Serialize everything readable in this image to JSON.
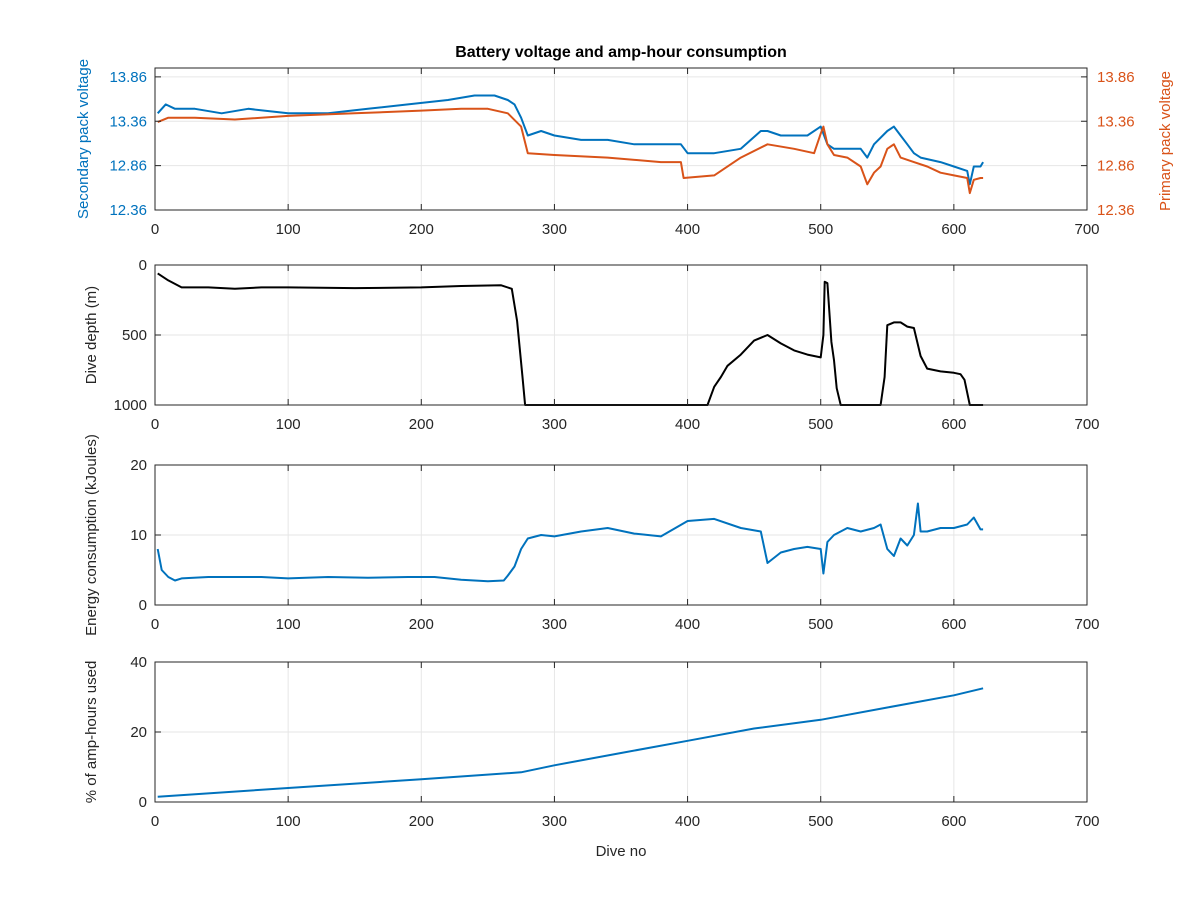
{
  "figure": {
    "title": "Battery voltage and amp-hour consumption",
    "xlabel": "Dive no"
  },
  "colors": {
    "blue": "#0072bd",
    "orange": "#d95319",
    "black": "#000000",
    "grid": "#e6e6e6",
    "axis": "#262626"
  },
  "chart_data": [
    {
      "type": "line",
      "title": "Battery voltage and amp-hour consumption",
      "xlabel": "",
      "ylabel": "Secondary pack voltage",
      "ylabel_right": "Primary pack voltage",
      "xlim": [
        0,
        700
      ],
      "ylim": [
        12.36,
        13.96
      ],
      "ylim_right": [
        12.36,
        13.96
      ],
      "xticks": [
        0,
        100,
        200,
        300,
        400,
        500,
        600,
        700
      ],
      "yticks": [
        12.36,
        12.86,
        13.36,
        13.86
      ],
      "yticks_right": [
        12.36,
        12.86,
        13.36,
        13.86
      ],
      "ytick_labels": [
        "12.36",
        "12.86",
        "13.36",
        "13.86"
      ],
      "grid": true,
      "series": [
        {
          "axis": "left",
          "color": "#0072bd",
          "x": [
            2,
            8,
            15,
            30,
            50,
            70,
            100,
            130,
            160,
            190,
            220,
            240,
            255,
            265,
            270,
            275,
            280,
            290,
            300,
            320,
            340,
            360,
            380,
            395,
            400,
            420,
            440,
            455,
            460,
            470,
            480,
            490,
            500,
            505,
            510,
            520,
            530,
            535,
            540,
            550,
            555,
            560,
            565,
            570,
            575,
            590,
            600,
            610,
            612,
            615,
            620,
            622
          ],
          "y": [
            13.45,
            13.55,
            13.5,
            13.5,
            13.45,
            13.5,
            13.45,
            13.45,
            13.5,
            13.55,
            13.6,
            13.65,
            13.65,
            13.6,
            13.55,
            13.4,
            13.2,
            13.25,
            13.2,
            13.15,
            13.15,
            13.1,
            13.1,
            13.1,
            13.0,
            13.0,
            13.05,
            13.25,
            13.25,
            13.2,
            13.2,
            13.2,
            13.3,
            13.1,
            13.05,
            13.05,
            13.05,
            12.95,
            13.1,
            13.25,
            13.3,
            13.2,
            13.1,
            13.0,
            12.95,
            12.9,
            12.85,
            12.8,
            12.65,
            12.85,
            12.85,
            12.9
          ]
        },
        {
          "axis": "right",
          "color": "#d95319",
          "x": [
            2,
            10,
            30,
            60,
            100,
            150,
            200,
            230,
            250,
            265,
            275,
            280,
            300,
            340,
            380,
            395,
            397,
            420,
            440,
            460,
            480,
            495,
            500,
            502,
            505,
            510,
            520,
            530,
            535,
            540,
            545,
            550,
            555,
            560,
            570,
            580,
            590,
            600,
            610,
            612,
            615,
            620,
            622
          ],
          "y": [
            13.35,
            13.4,
            13.4,
            13.38,
            13.42,
            13.45,
            13.48,
            13.5,
            13.5,
            13.45,
            13.3,
            13.0,
            12.98,
            12.95,
            12.9,
            12.9,
            12.72,
            12.75,
            12.95,
            13.1,
            13.05,
            13.0,
            13.22,
            13.3,
            13.1,
            12.98,
            12.95,
            12.85,
            12.65,
            12.78,
            12.85,
            13.05,
            13.1,
            12.95,
            12.9,
            12.85,
            12.78,
            12.75,
            12.72,
            12.55,
            12.7,
            12.72,
            12.72
          ]
        }
      ]
    },
    {
      "type": "line",
      "xlabel": "",
      "ylabel": "Dive depth (m)",
      "xlim": [
        0,
        700
      ],
      "ylim": [
        0,
        1000
      ],
      "yreverse": true,
      "xticks": [
        0,
        100,
        200,
        300,
        400,
        500,
        600,
        700
      ],
      "yticks": [
        0,
        500,
        1000
      ],
      "ytick_labels": [
        "0",
        "500",
        "1000"
      ],
      "grid": true,
      "series": [
        {
          "color": "#000000",
          "x": [
            2,
            10,
            20,
            40,
            60,
            80,
            100,
            150,
            200,
            230,
            260,
            268,
            272,
            276,
            278,
            280,
            300,
            350,
            400,
            415,
            420,
            425,
            430,
            440,
            450,
            460,
            470,
            480,
            490,
            500,
            502,
            503,
            505,
            508,
            510,
            512,
            515,
            545,
            548,
            550,
            555,
            560,
            565,
            570,
            575,
            580,
            590,
            600,
            605,
            608,
            612,
            622
          ],
          "y": [
            60,
            110,
            160,
            160,
            170,
            160,
            160,
            165,
            160,
            150,
            145,
            170,
            400,
            800,
            1000,
            1000,
            1000,
            1000,
            1000,
            1000,
            870,
            800,
            720,
            640,
            540,
            500,
            560,
            610,
            640,
            660,
            500,
            120,
            130,
            550,
            680,
            880,
            1000,
            1000,
            800,
            430,
            410,
            410,
            440,
            450,
            650,
            740,
            760,
            770,
            780,
            820,
            1000,
            1000
          ]
        }
      ]
    },
    {
      "type": "line",
      "xlabel": "",
      "ylabel": "Energy consumption (kJoules)",
      "xlim": [
        0,
        700
      ],
      "ylim": [
        0,
        20
      ],
      "xticks": [
        0,
        100,
        200,
        300,
        400,
        500,
        600,
        700
      ],
      "yticks": [
        0,
        10,
        20
      ],
      "ytick_labels": [
        "0",
        "10",
        "20"
      ],
      "grid": true,
      "series": [
        {
          "color": "#0072bd",
          "x": [
            2,
            5,
            10,
            15,
            20,
            40,
            60,
            80,
            100,
            130,
            160,
            190,
            210,
            230,
            250,
            262,
            265,
            270,
            275,
            280,
            290,
            300,
            320,
            340,
            360,
            380,
            400,
            420,
            440,
            455,
            460,
            470,
            480,
            490,
            500,
            502,
            505,
            510,
            520,
            530,
            540,
            545,
            550,
            555,
            560,
            565,
            570,
            573,
            575,
            580,
            590,
            600,
            610,
            615,
            620,
            622
          ],
          "y": [
            8.0,
            5.0,
            4.0,
            3.5,
            3.8,
            4.0,
            4.0,
            4.0,
            3.8,
            4.0,
            3.9,
            4.0,
            4.0,
            3.6,
            3.4,
            3.5,
            4.2,
            5.5,
            8.0,
            9.5,
            10.0,
            9.8,
            10.5,
            11.0,
            10.2,
            9.8,
            12.0,
            12.3,
            11.0,
            10.5,
            6.0,
            7.5,
            8.0,
            8.3,
            8.0,
            4.5,
            9.0,
            10.0,
            11.0,
            10.5,
            11.0,
            11.5,
            8.0,
            7.0,
            9.5,
            8.5,
            10.0,
            14.5,
            10.5,
            10.5,
            11.0,
            11.0,
            11.5,
            12.5,
            10.8,
            10.8
          ]
        }
      ]
    },
    {
      "type": "line",
      "xlabel": "Dive no",
      "ylabel": "% of amp-hours used",
      "xlim": [
        0,
        700
      ],
      "ylim": [
        0,
        40
      ],
      "xticks": [
        0,
        100,
        200,
        300,
        400,
        500,
        600,
        700
      ],
      "yticks": [
        0,
        20,
        40
      ],
      "ytick_labels": [
        "0",
        "20",
        "40"
      ],
      "grid": true,
      "series": [
        {
          "color": "#0072bd",
          "x": [
            2,
            100,
            200,
            275,
            300,
            350,
            400,
            450,
            500,
            550,
            600,
            622
          ],
          "y": [
            1.5,
            4.0,
            6.5,
            8.5,
            10.5,
            14.0,
            17.5,
            21.0,
            23.5,
            27.0,
            30.5,
            32.5
          ]
        }
      ]
    }
  ]
}
